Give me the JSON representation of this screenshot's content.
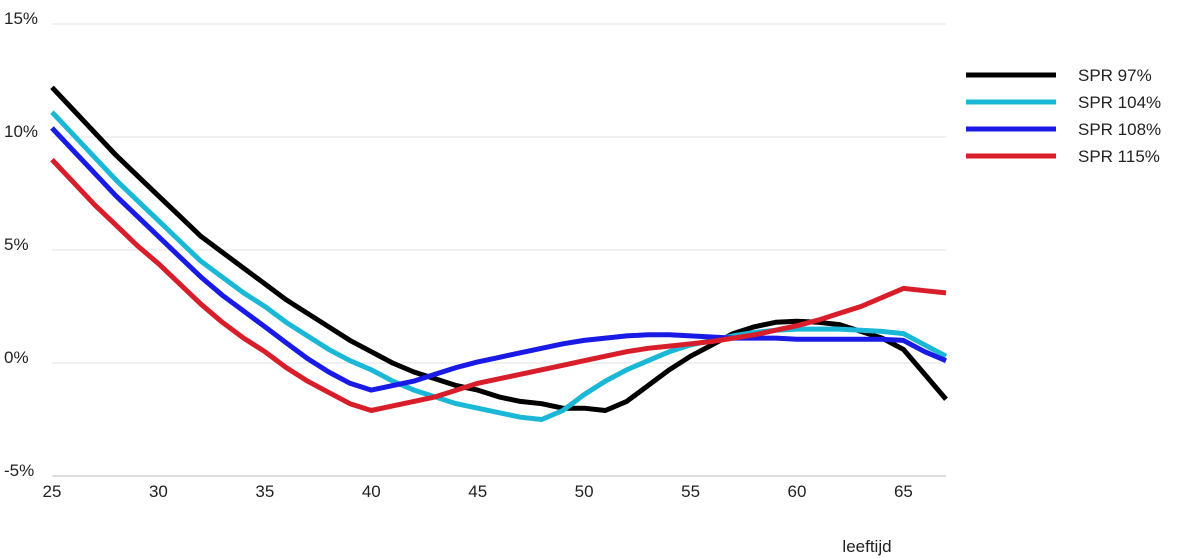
{
  "chart_data": {
    "type": "line",
    "xlabel": "leeftijd",
    "ylabel": "",
    "xlim": [
      25,
      67
    ],
    "ylim": [
      -5,
      15
    ],
    "x_ticks": [
      25,
      30,
      35,
      40,
      45,
      50,
      55,
      60,
      65
    ],
    "x_tick_labels": [
      "25",
      "30",
      "35",
      "40",
      "45",
      "50",
      "55",
      "60",
      "65"
    ],
    "y_ticks": [
      -5,
      0,
      5,
      10,
      15
    ],
    "y_tick_labels": [
      "-5%",
      "0%",
      "5%",
      "10%",
      "15%"
    ],
    "grid": "horizontal",
    "legend_position": "right",
    "series": [
      {
        "name": "SPR 97%",
        "color": "#000000",
        "x": [
          25,
          26,
          27,
          28,
          29,
          30,
          31,
          32,
          33,
          34,
          35,
          36,
          37,
          38,
          39,
          40,
          41,
          42,
          43,
          44,
          45,
          46,
          47,
          48,
          49,
          50,
          51,
          52,
          53,
          54,
          55,
          56,
          57,
          58,
          59,
          60,
          61,
          62,
          63,
          64,
          65,
          66,
          67
        ],
        "values": [
          12.2,
          11.2,
          10.2,
          9.2,
          8.3,
          7.4,
          6.5,
          5.6,
          4.9,
          4.2,
          3.5,
          2.8,
          2.2,
          1.6,
          1.0,
          0.5,
          0.0,
          -0.4,
          -0.7,
          -1.0,
          -1.2,
          -1.5,
          -1.7,
          -1.8,
          -2.0,
          -2.0,
          -2.1,
          -1.7,
          -1.0,
          -0.3,
          0.3,
          0.8,
          1.3,
          1.6,
          1.8,
          1.85,
          1.8,
          1.7,
          1.4,
          1.1,
          0.6,
          -0.5,
          -1.6
        ]
      },
      {
        "name": "SPR 104%",
        "color": "#1ab8d6",
        "x": [
          25,
          26,
          27,
          28,
          29,
          30,
          31,
          32,
          33,
          34,
          35,
          36,
          37,
          38,
          39,
          40,
          41,
          42,
          43,
          44,
          45,
          46,
          47,
          48,
          49,
          50,
          51,
          52,
          53,
          54,
          55,
          56,
          57,
          58,
          59,
          60,
          61,
          62,
          63,
          64,
          65,
          66,
          67
        ],
        "values": [
          11.1,
          10.1,
          9.1,
          8.1,
          7.2,
          6.3,
          5.4,
          4.5,
          3.8,
          3.1,
          2.5,
          1.8,
          1.2,
          0.6,
          0.1,
          -0.3,
          -0.8,
          -1.2,
          -1.5,
          -1.8,
          -2.0,
          -2.2,
          -2.4,
          -2.5,
          -2.1,
          -1.4,
          -0.8,
          -0.3,
          0.1,
          0.5,
          0.8,
          1.0,
          1.2,
          1.35,
          1.45,
          1.5,
          1.5,
          1.5,
          1.45,
          1.4,
          1.3,
          0.8,
          0.3
        ]
      },
      {
        "name": "SPR 108%",
        "color": "#1a1ae6",
        "x": [
          25,
          26,
          27,
          28,
          29,
          30,
          31,
          32,
          33,
          34,
          35,
          36,
          37,
          38,
          39,
          40,
          41,
          42,
          43,
          44,
          45,
          46,
          47,
          48,
          49,
          50,
          51,
          52,
          53,
          54,
          55,
          56,
          57,
          58,
          59,
          60,
          61,
          62,
          63,
          64,
          65,
          66,
          67
        ],
        "values": [
          10.4,
          9.4,
          8.4,
          7.4,
          6.5,
          5.6,
          4.7,
          3.8,
          3.0,
          2.3,
          1.6,
          0.9,
          0.2,
          -0.4,
          -0.9,
          -1.2,
          -1.0,
          -0.8,
          -0.5,
          -0.2,
          0.05,
          0.25,
          0.45,
          0.65,
          0.85,
          1.0,
          1.1,
          1.2,
          1.25,
          1.25,
          1.2,
          1.15,
          1.1,
          1.1,
          1.1,
          1.05,
          1.05,
          1.05,
          1.05,
          1.05,
          1.0,
          0.5,
          0.1
        ]
      },
      {
        "name": "SPR 115%",
        "color": "#d81e2a",
        "x": [
          25,
          26,
          27,
          28,
          29,
          30,
          31,
          32,
          33,
          34,
          35,
          36,
          37,
          38,
          39,
          40,
          41,
          42,
          43,
          44,
          45,
          46,
          47,
          48,
          49,
          50,
          51,
          52,
          53,
          54,
          55,
          56,
          57,
          58,
          59,
          60,
          61,
          62,
          63,
          64,
          65,
          66,
          67
        ],
        "values": [
          9.0,
          8.0,
          7.0,
          6.1,
          5.2,
          4.4,
          3.5,
          2.6,
          1.8,
          1.1,
          0.5,
          -0.2,
          -0.8,
          -1.3,
          -1.8,
          -2.1,
          -1.9,
          -1.7,
          -1.5,
          -1.2,
          -0.9,
          -0.7,
          -0.5,
          -0.3,
          -0.1,
          0.1,
          0.3,
          0.5,
          0.65,
          0.75,
          0.85,
          0.95,
          1.1,
          1.25,
          1.45,
          1.65,
          1.9,
          2.2,
          2.5,
          2.9,
          3.3,
          3.2,
          3.1
        ]
      }
    ]
  }
}
